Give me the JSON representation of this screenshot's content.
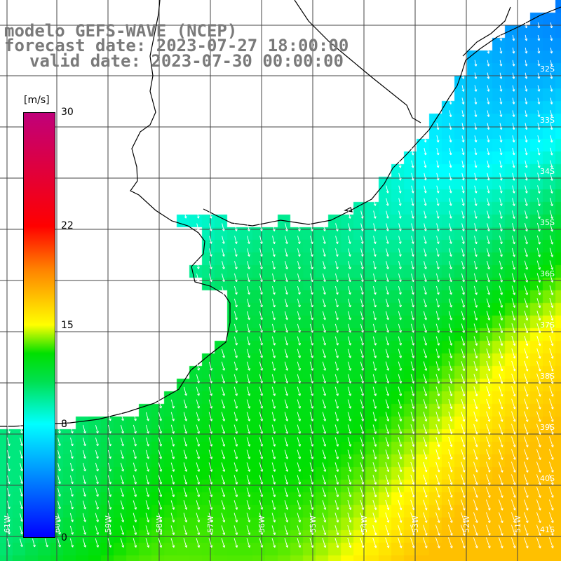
{
  "header": {
    "line1": "modelo GEFS-WAVE (NCEP)",
    "line2": "forecast date: 2023-07-27 18:00:00",
    "line3": "valid date: 2023-07-30 00:00:00"
  },
  "colorbar": {
    "unit": "[m/s]",
    "min": 0,
    "max": 30,
    "ticks": [
      "0",
      "8",
      "15",
      "22",
      "30"
    ],
    "tick_values": [
      0,
      8,
      15,
      22,
      30
    ],
    "stops": [
      {
        "v": 0,
        "color": "#0000ff"
      },
      {
        "v": 4,
        "color": "#0080ff"
      },
      {
        "v": 8,
        "color": "#00ffff"
      },
      {
        "v": 11,
        "color": "#00e050"
      },
      {
        "v": 13,
        "color": "#00e000"
      },
      {
        "v": 15,
        "color": "#ffff00"
      },
      {
        "v": 19,
        "color": "#ff8000"
      },
      {
        "v": 22,
        "color": "#ff0000"
      },
      {
        "v": 30,
        "color": "#c0007a"
      }
    ]
  },
  "longitude_labels": [
    "61W",
    "60W",
    "59W",
    "58W",
    "57W",
    "56W",
    "55W",
    "54W",
    "53W",
    "52W",
    "51W"
  ],
  "latitude_labels": [
    "32S",
    "33S",
    "34S",
    "35S",
    "36S",
    "37S",
    "38S",
    "39S",
    "40S",
    "41S"
  ],
  "field": {
    "quantity": "wind speed",
    "units": "m/s",
    "typical_speed_coast": 6,
    "typical_speed_central": 11,
    "typical_speed_southeast": 16,
    "dominant_direction": "from north-northwest toward south-southeast"
  },
  "colors": {
    "land": "#ffffff",
    "grid": "#444444",
    "coast": "#000000",
    "arrows": "#ffffff",
    "title": "#7a7a7a"
  }
}
